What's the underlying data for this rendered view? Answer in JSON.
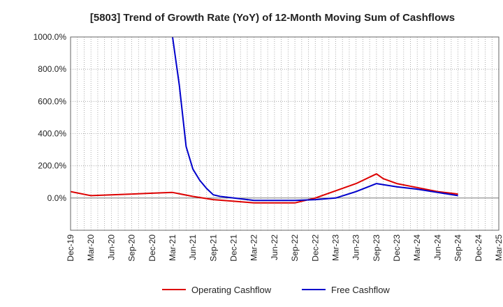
{
  "chart_data": {
    "type": "line",
    "title": "[5803]  Trend of Growth Rate (YoY) of 12-Month Moving Sum of Cashflows",
    "xlabel": "",
    "ylabel": "",
    "ylim": [
      -200,
      1000
    ],
    "yticks": [
      0,
      200,
      400,
      600,
      800,
      1000
    ],
    "ytick_labels": [
      "0.0%",
      "200.0%",
      "400.0%",
      "600.0%",
      "800.0%",
      "1000.0%"
    ],
    "xtick_labels": [
      "Dec-19",
      "Mar-20",
      "Jun-20",
      "Sep-20",
      "Dec-20",
      "Mar-21",
      "Jun-21",
      "Sep-21",
      "Dec-21",
      "Mar-22",
      "Jun-22",
      "Sep-22",
      "Dec-22",
      "Mar-23",
      "Jun-23",
      "Sep-23",
      "Dec-23",
      "Mar-24",
      "Jun-24",
      "Sep-24",
      "Dec-24",
      "Mar-25"
    ],
    "x_months": [
      "Dec-19",
      "Jan-20",
      "Feb-20",
      "Mar-20",
      "Apr-20",
      "May-20",
      "Jun-20",
      "Jul-20",
      "Aug-20",
      "Sep-20",
      "Oct-20",
      "Nov-20",
      "Dec-20",
      "Jan-21",
      "Feb-21",
      "Mar-21",
      "Apr-21",
      "May-21",
      "Jun-21",
      "Jul-21",
      "Aug-21",
      "Sep-21",
      "Oct-21",
      "Nov-21",
      "Dec-21",
      "Jan-22",
      "Feb-22",
      "Mar-22",
      "Apr-22",
      "May-22",
      "Jun-22",
      "Jul-22",
      "Aug-22",
      "Sep-22",
      "Oct-22",
      "Nov-22",
      "Dec-22",
      "Jan-23",
      "Feb-23",
      "Mar-23",
      "Apr-23",
      "May-23",
      "Jun-23",
      "Jul-23",
      "Aug-23",
      "Sep-23",
      "Oct-23",
      "Nov-23",
      "Dec-23",
      "Jan-24",
      "Feb-24",
      "Mar-24",
      "Apr-24",
      "May-24",
      "Jun-24",
      "Jul-24",
      "Aug-24",
      "Sep-24",
      "Oct-24",
      "Nov-24",
      "Dec-24",
      "Jan-25",
      "Feb-25",
      "Mar-25"
    ],
    "grid": true,
    "legend_position": "bottom",
    "series": [
      {
        "name": "Operating Cashflow",
        "color": "#dd0000",
        "points": [
          [
            "Dec-19",
            40
          ],
          [
            "Mar-20",
            15
          ],
          [
            "Jun-20",
            20
          ],
          [
            "Sep-20",
            25
          ],
          [
            "Dec-20",
            30
          ],
          [
            "Mar-21",
            35
          ],
          [
            "Jun-21",
            10
          ],
          [
            "Sep-21",
            -10
          ],
          [
            "Dec-21",
            -20
          ],
          [
            "Mar-22",
            -30
          ],
          [
            "Jun-22",
            -30
          ],
          [
            "Sep-22",
            -30
          ],
          [
            "Dec-22",
            0
          ],
          [
            "Mar-23",
            45
          ],
          [
            "Jun-23",
            90
          ],
          [
            "Sep-23",
            150
          ],
          [
            "Oct-23",
            120
          ],
          [
            "Dec-23",
            90
          ],
          [
            "Mar-24",
            65
          ],
          [
            "Jun-24",
            40
          ],
          [
            "Sep-24",
            25
          ]
        ]
      },
      {
        "name": "Free Cashflow",
        "color": "#0000cc",
        "points": [
          [
            "Mar-21",
            1000
          ],
          [
            "Apr-21",
            700
          ],
          [
            "May-21",
            320
          ],
          [
            "Jun-21",
            180
          ],
          [
            "Jul-21",
            110
          ],
          [
            "Aug-21",
            60
          ],
          [
            "Sep-21",
            20
          ],
          [
            "Oct-21",
            10
          ],
          [
            "Dec-21",
            0
          ],
          [
            "Mar-22",
            -15
          ],
          [
            "Jun-22",
            -15
          ],
          [
            "Sep-22",
            -15
          ],
          [
            "Dec-22",
            -10
          ],
          [
            "Mar-23",
            0
          ],
          [
            "Jun-23",
            40
          ],
          [
            "Sep-23",
            90
          ],
          [
            "Dec-23",
            70
          ],
          [
            "Mar-24",
            55
          ],
          [
            "Jun-24",
            35
          ],
          [
            "Sep-24",
            15
          ]
        ]
      }
    ]
  }
}
